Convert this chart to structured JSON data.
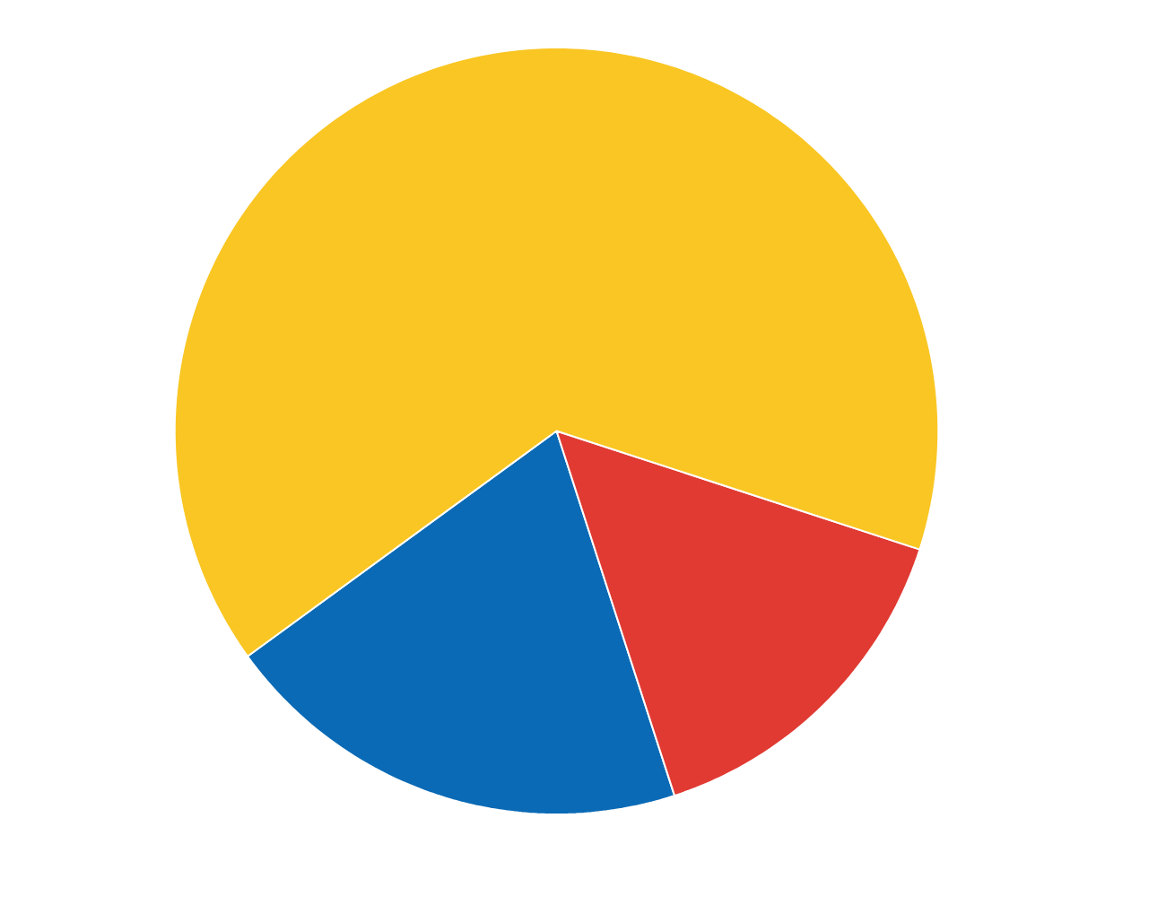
{
  "chart_data": {
    "type": "pie",
    "categories": [
      null,
      null,
      null
    ],
    "values": [
      20,
      15,
      65
    ],
    "colors": [
      "#0a6ab5",
      "#e03a32",
      "#f9c623"
    ]
  }
}
